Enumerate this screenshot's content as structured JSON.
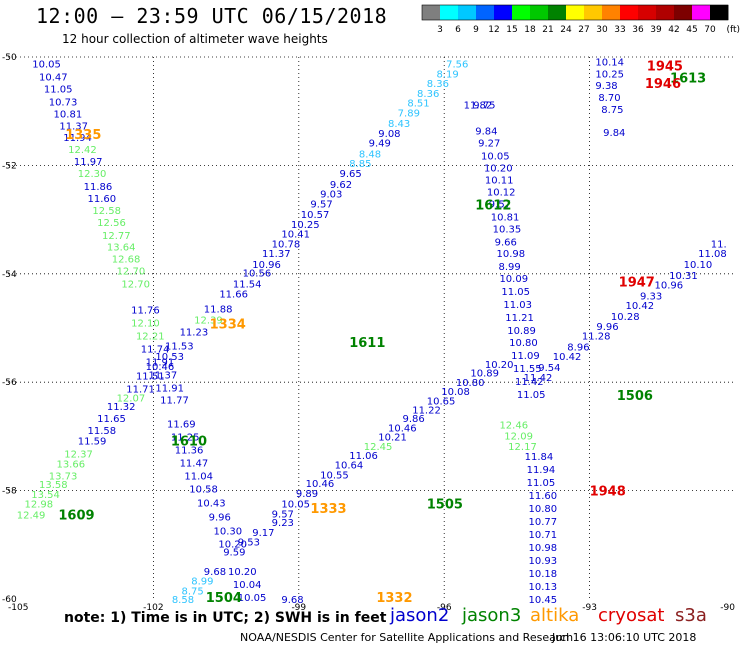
{
  "header": {
    "title": "12:00 – 23:59 UTC 06/15/2018",
    "subtitle": "12 hour collection of altimeter wave heights"
  },
  "colorbar": {
    "unit": "(ft)",
    "ticks": [
      "3",
      "6",
      "9",
      "12",
      "15",
      "18",
      "21",
      "24",
      "27",
      "30",
      "33",
      "36",
      "39",
      "42",
      "45",
      "70"
    ],
    "colors": [
      "#7f7f7f",
      "#00ffff",
      "#00c8ff",
      "#0064ff",
      "#0000ff",
      "#00ff00",
      "#00c800",
      "#008200",
      "#ffff00",
      "#ffc800",
      "#ff8200",
      "#ff0000",
      "#d70000",
      "#af0000",
      "#7d0000",
      "#ff00ff",
      "#000000"
    ]
  },
  "axes": {
    "lon_ticks": [
      "-105",
      "-102",
      "-99",
      "-96",
      "-93",
      "-90"
    ],
    "lat_ticks": [
      "-50",
      "-52",
      "-54",
      "-56",
      "-58",
      "-60"
    ],
    "lon_range": [
      -105,
      -90
    ],
    "lat_range": [
      -60,
      -50
    ]
  },
  "colors": {
    "jason2": "#0000cd",
    "jason3": "#008200",
    "altika": "#ff9900",
    "cryosat": "#e00000",
    "s3a": "#8b2020",
    "low": "#2ec4ff",
    "mid": "#66ee66",
    "grid": "#000000"
  },
  "passes": [
    {
      "label": "1335",
      "color": "altika",
      "lon": -103.82,
      "lat": -51.42
    },
    {
      "label": "1334",
      "color": "altika",
      "lon": -100.84,
      "lat": -54.92
    },
    {
      "label": "1333",
      "color": "altika",
      "lon": -98.76,
      "lat": -58.32
    },
    {
      "label": "1332",
      "color": "altika",
      "lon": -97.4,
      "lat": -59.96
    },
    {
      "label": "1612",
      "color": "jason3",
      "lon": -95.36,
      "lat": -52.72
    },
    {
      "label": "1611",
      "color": "jason3",
      "lon": -97.96,
      "lat": -55.26
    },
    {
      "label": "1610",
      "color": "jason3",
      "lon": -101.64,
      "lat": -57.08
    },
    {
      "label": "1609",
      "color": "jason3",
      "lon": -103.96,
      "lat": -58.44
    },
    {
      "label": "1613",
      "color": "jason3",
      "lon": -91.34,
      "lat": -50.38
    },
    {
      "label": "1506",
      "color": "jason3",
      "lon": -92.44,
      "lat": -56.24
    },
    {
      "label": "1505",
      "color": "jason3",
      "lon": -96.36,
      "lat": -58.24
    },
    {
      "label": "1504",
      "color": "jason3",
      "lon": -100.92,
      "lat": -59.96
    },
    {
      "label": "1945",
      "color": "cryosat",
      "lon": -91.82,
      "lat": -50.16
    },
    {
      "label": "1946",
      "color": "cryosat",
      "lon": -91.86,
      "lat": -50.48
    },
    {
      "label": "1947",
      "color": "cryosat",
      "lon": -92.4,
      "lat": -54.14
    },
    {
      "label": "1948",
      "color": "cryosat",
      "lon": -93.0,
      "lat": -58.0
    }
  ],
  "obs": [
    {
      "v": "10.05",
      "lon": -104.5,
      "lat": -50.12,
      "c": "jason2"
    },
    {
      "v": "10.47",
      "lon": -104.36,
      "lat": -50.36,
      "c": "jason2"
    },
    {
      "v": "11.05",
      "lon": -104.26,
      "lat": -50.58,
      "c": "jason2"
    },
    {
      "v": "10.73",
      "lon": -104.16,
      "lat": -50.82,
      "c": "jason2"
    },
    {
      "v": "10.81",
      "lon": -104.06,
      "lat": -51.04,
      "c": "jason2"
    },
    {
      "v": "11.37",
      "lon": -103.94,
      "lat": -51.26,
      "c": "jason2"
    },
    {
      "v": "11.94",
      "lon": -103.86,
      "lat": -51.48,
      "c": "jason2"
    },
    {
      "v": "12.42",
      "lon": -103.76,
      "lat": -51.7,
      "c": "mid"
    },
    {
      "v": "11.97",
      "lon": -103.64,
      "lat": -51.92,
      "c": "jason2"
    },
    {
      "v": "12.30",
      "lon": -103.56,
      "lat": -52.14,
      "c": "mid"
    },
    {
      "v": "11.86",
      "lon": -103.44,
      "lat": -52.38,
      "c": "jason2"
    },
    {
      "v": "11.60",
      "lon": -103.36,
      "lat": -52.6,
      "c": "jason2"
    },
    {
      "v": "12.58",
      "lon": -103.26,
      "lat": -52.82,
      "c": "mid"
    },
    {
      "v": "12.56",
      "lon": -103.16,
      "lat": -53.04,
      "c": "mid"
    },
    {
      "v": "12.77",
      "lon": -103.06,
      "lat": -53.28,
      "c": "mid"
    },
    {
      "v": "13.64",
      "lon": -102.96,
      "lat": -53.5,
      "c": "mid"
    },
    {
      "v": "12.68",
      "lon": -102.86,
      "lat": -53.72,
      "c": "mid"
    },
    {
      "v": "12.70",
      "lon": -102.76,
      "lat": -53.94,
      "c": "mid"
    },
    {
      "v": "12.70",
      "lon": -102.66,
      "lat": -54.18,
      "c": "mid"
    },
    {
      "v": "11.76",
      "lon": -102.46,
      "lat": -54.66,
      "c": "jason2"
    },
    {
      "v": "12.10",
      "lon": -102.46,
      "lat": -54.9,
      "c": "mid"
    },
    {
      "v": "12.21",
      "lon": -102.36,
      "lat": -55.14,
      "c": "mid"
    },
    {
      "v": "11.74",
      "lon": -102.26,
      "lat": -55.38,
      "c": "jason2"
    },
    {
      "v": "11.91",
      "lon": -102.16,
      "lat": -55.62,
      "c": "jason2"
    },
    {
      "v": "11.37",
      "lon": -102.1,
      "lat": -55.86,
      "c": "jason2"
    },
    {
      "v": "11.91",
      "lon": -101.96,
      "lat": -56.1,
      "c": "jason2"
    },
    {
      "v": "11.77",
      "lon": -101.86,
      "lat": -56.32,
      "c": "jason2"
    },
    {
      "v": "11.69",
      "lon": -101.72,
      "lat": -56.76,
      "c": "jason2"
    },
    {
      "v": "11.25",
      "lon": -101.64,
      "lat": -57.0,
      "c": "jason2"
    },
    {
      "v": "11.36",
      "lon": -101.56,
      "lat": -57.24,
      "c": "jason2"
    },
    {
      "v": "11.47",
      "lon": -101.46,
      "lat": -57.48,
      "c": "jason2"
    },
    {
      "v": "11.04",
      "lon": -101.36,
      "lat": -57.72,
      "c": "jason2"
    },
    {
      "v": "10.58",
      "lon": -101.26,
      "lat": -57.96,
      "c": "jason2"
    },
    {
      "v": "10.43",
      "lon": -101.1,
      "lat": -58.22,
      "c": "jason2"
    },
    {
      "v": "9.96",
      "lon": -100.86,
      "lat": -58.48,
      "c": "jason2"
    },
    {
      "v": "10.30",
      "lon": -100.76,
      "lat": -58.74,
      "c": "jason2"
    },
    {
      "v": "10.20",
      "lon": -100.66,
      "lat": -58.98,
      "c": "jason2"
    },
    {
      "v": "10.20",
      "lon": -100.46,
      "lat": -59.48,
      "c": "jason2"
    },
    {
      "v": "10.04",
      "lon": -100.36,
      "lat": -59.72,
      "c": "jason2"
    },
    {
      "v": "10.05",
      "lon": -100.26,
      "lat": -59.96,
      "c": "jason2"
    },
    {
      "v": "9.68",
      "lon": -99.36,
      "lat": -60.0,
      "c": "jason2"
    },
    {
      "v": "12.49",
      "lon": -104.82,
      "lat": -58.44,
      "c": "mid"
    },
    {
      "v": "12.98",
      "lon": -104.66,
      "lat": -58.24,
      "c": "mid"
    },
    {
      "v": "13.54",
      "lon": -104.52,
      "lat": -58.06,
      "c": "mid"
    },
    {
      "v": "13.58",
      "lon": -104.36,
      "lat": -57.88,
      "c": "mid"
    },
    {
      "v": "13.73",
      "lon": -104.16,
      "lat": -57.72,
      "c": "mid"
    },
    {
      "v": "13.66",
      "lon": -104.0,
      "lat": -57.5,
      "c": "mid"
    },
    {
      "v": "12.37",
      "lon": -103.84,
      "lat": -57.32,
      "c": "mid"
    },
    {
      "v": "11.59",
      "lon": -103.56,
      "lat": -57.08,
      "c": "jason2"
    },
    {
      "v": "11.58",
      "lon": -103.36,
      "lat": -56.88,
      "c": "jason2"
    },
    {
      "v": "11.65",
      "lon": -103.16,
      "lat": -56.66,
      "c": "jason2"
    },
    {
      "v": "11.32",
      "lon": -102.96,
      "lat": -56.44,
      "c": "jason2"
    },
    {
      "v": "12.07",
      "lon": -102.76,
      "lat": -56.28,
      "c": "mid"
    },
    {
      "v": "11.71",
      "lon": -102.56,
      "lat": -56.12,
      "c": "jason2"
    },
    {
      "v": "11.51",
      "lon": -102.36,
      "lat": -55.88,
      "c": "jason2"
    },
    {
      "v": "10.46",
      "lon": -102.16,
      "lat": -55.7,
      "c": "jason2"
    },
    {
      "v": "10.53",
      "lon": -101.96,
      "lat": -55.52,
      "c": "jason2"
    },
    {
      "v": "11.53",
      "lon": -101.76,
      "lat": -55.32,
      "c": "jason2"
    },
    {
      "v": "11.23",
      "lon": -101.46,
      "lat": -55.06,
      "c": "jason2"
    },
    {
      "v": "12.39",
      "lon": -101.16,
      "lat": -54.84,
      "c": "mid"
    },
    {
      "v": "11.88",
      "lon": -100.96,
      "lat": -54.64,
      "c": "jason2"
    },
    {
      "v": "11.66",
      "lon": -100.64,
      "lat": -54.36,
      "c": "jason2"
    },
    {
      "v": "11.54",
      "lon": -100.36,
      "lat": -54.18,
      "c": "jason2"
    },
    {
      "v": "10.56",
      "lon": -100.16,
      "lat": -53.98,
      "c": "jason2"
    },
    {
      "v": "10.96",
      "lon": -99.96,
      "lat": -53.82,
      "c": "jason2"
    },
    {
      "v": "11.37",
      "lon": -99.76,
      "lat": -53.62,
      "c": "jason2"
    },
    {
      "v": "10.78",
      "lon": -99.56,
      "lat": -53.44,
      "c": "jason2"
    },
    {
      "v": "10.41",
      "lon": -99.36,
      "lat": -53.26,
      "c": "jason2"
    },
    {
      "v": "10.25",
      "lon": -99.16,
      "lat": -53.08,
      "c": "jason2"
    },
    {
      "v": "10.57",
      "lon": -98.96,
      "lat": -52.9,
      "c": "jason2"
    },
    {
      "v": "9.57",
      "lon": -98.76,
      "lat": -52.7,
      "c": "jason2"
    },
    {
      "v": "9.03",
      "lon": -98.56,
      "lat": -52.52,
      "c": "jason2"
    },
    {
      "v": "9.62",
      "lon": -98.36,
      "lat": -52.34,
      "c": "jason2"
    },
    {
      "v": "9.65",
      "lon": -98.16,
      "lat": -52.14,
      "c": "jason2"
    },
    {
      "v": "8.85",
      "lon": -97.96,
      "lat": -51.96,
      "c": "low"
    },
    {
      "v": "8.48",
      "lon": -97.76,
      "lat": -51.78,
      "c": "low"
    },
    {
      "v": "9.49",
      "lon": -97.56,
      "lat": -51.58,
      "c": "jason2"
    },
    {
      "v": "9.08",
      "lon": -97.36,
      "lat": -51.4,
      "c": "jason2"
    },
    {
      "v": "8.43",
      "lon": -97.16,
      "lat": -51.22,
      "c": "low"
    },
    {
      "v": "7.89",
      "lon": -96.96,
      "lat": -51.02,
      "c": "low"
    },
    {
      "v": "8.51",
      "lon": -96.76,
      "lat": -50.84,
      "c": "low"
    },
    {
      "v": "8.36",
      "lon": -96.56,
      "lat": -50.66,
      "c": "low"
    },
    {
      "v": "8.36",
      "lon": -96.36,
      "lat": -50.48,
      "c": "low"
    },
    {
      "v": "8.19",
      "lon": -96.16,
      "lat": -50.3,
      "c": "low"
    },
    {
      "v": "7.56",
      "lon": -95.96,
      "lat": -50.12,
      "c": "low"
    },
    {
      "v": "11.82",
      "lon": -95.6,
      "lat": -50.88,
      "c": "jason2"
    },
    {
      "v": "9.75",
      "lon": -95.4,
      "lat": -50.88,
      "c": "jason2"
    },
    {
      "v": "9.84",
      "lon": -95.36,
      "lat": -51.36,
      "c": "jason2"
    },
    {
      "v": "9.27",
      "lon": -95.3,
      "lat": -51.58,
      "c": "jason2"
    },
    {
      "v": "10.05",
      "lon": -95.24,
      "lat": -51.82,
      "c": "jason2"
    },
    {
      "v": "10.20",
      "lon": -95.18,
      "lat": -52.04,
      "c": "jason2"
    },
    {
      "v": "10.11",
      "lon": -95.16,
      "lat": -52.26,
      "c": "jason2"
    },
    {
      "v": "10.12",
      "lon": -95.12,
      "lat": -52.48,
      "c": "jason2"
    },
    {
      "v": "9.57",
      "lon": -95.08,
      "lat": -52.7,
      "c": "jason2"
    },
    {
      "v": "10.81",
      "lon": -95.04,
      "lat": -52.94,
      "c": "jason2"
    },
    {
      "v": "10.35",
      "lon": -95.0,
      "lat": -53.16,
      "c": "jason2"
    },
    {
      "v": "9.66",
      "lon": -94.96,
      "lat": -53.4,
      "c": "jason2"
    },
    {
      "v": "10.98",
      "lon": -94.92,
      "lat": -53.62,
      "c": "jason2"
    },
    {
      "v": "8.99",
      "lon": -94.88,
      "lat": -53.86,
      "c": "jason2"
    },
    {
      "v": "10.09",
      "lon": -94.86,
      "lat": -54.08,
      "c": "jason2"
    },
    {
      "v": "11.05",
      "lon": -94.82,
      "lat": -54.32,
      "c": "jason2"
    },
    {
      "v": "11.03",
      "lon": -94.78,
      "lat": -54.56,
      "c": "jason2"
    },
    {
      "v": "11.21",
      "lon": -94.74,
      "lat": -54.8,
      "c": "jason2"
    },
    {
      "v": "10.89",
      "lon": -94.7,
      "lat": -55.04,
      "c": "jason2"
    },
    {
      "v": "10.80",
      "lon": -94.66,
      "lat": -55.26,
      "c": "jason2"
    },
    {
      "v": "11.09",
      "lon": -94.62,
      "lat": -55.5,
      "c": "jason2"
    },
    {
      "v": "11.55",
      "lon": -94.58,
      "lat": -55.74,
      "c": "jason2"
    },
    {
      "v": "11.42",
      "lon": -94.54,
      "lat": -55.98,
      "c": "jason2"
    },
    {
      "v": "11.05",
      "lon": -94.5,
      "lat": -56.22,
      "c": "jason2"
    },
    {
      "v": "11.84",
      "lon": -94.34,
      "lat": -57.36,
      "c": "jason2"
    },
    {
      "v": "11.94",
      "lon": -94.3,
      "lat": -57.6,
      "c": "jason2"
    },
    {
      "v": "11.05",
      "lon": -94.3,
      "lat": -57.84,
      "c": "jason2"
    },
    {
      "v": "11.60",
      "lon": -94.26,
      "lat": -58.08,
      "c": "jason2"
    },
    {
      "v": "10.80",
      "lon": -94.26,
      "lat": -58.32,
      "c": "jason2"
    },
    {
      "v": "10.77",
      "lon": -94.26,
      "lat": -58.56,
      "c": "jason2"
    },
    {
      "v": "10.71",
      "lon": -94.26,
      "lat": -58.8,
      "c": "jason2"
    },
    {
      "v": "10.98",
      "lon": -94.26,
      "lat": -59.04,
      "c": "jason2"
    },
    {
      "v": "10.93",
      "lon": -94.26,
      "lat": -59.28,
      "c": "jason2"
    },
    {
      "v": "10.18",
      "lon": -94.26,
      "lat": -59.52,
      "c": "jason2"
    },
    {
      "v": "10.13",
      "lon": -94.26,
      "lat": -59.76,
      "c": "jason2"
    },
    {
      "v": "10.45",
      "lon": -94.26,
      "lat": -60.0,
      "c": "jason2"
    },
    {
      "v": "10.14",
      "lon": -92.88,
      "lat": -50.08,
      "c": "jason2"
    },
    {
      "v": "10.25",
      "lon": -92.88,
      "lat": -50.3,
      "c": "jason2"
    },
    {
      "v": "9.38",
      "lon": -92.88,
      "lat": -50.52,
      "c": "jason2"
    },
    {
      "v": "8.70",
      "lon": -92.82,
      "lat": -50.74,
      "c": "jason2"
    },
    {
      "v": "8.75",
      "lon": -92.76,
      "lat": -50.96,
      "c": "jason2"
    },
    {
      "v": "9.84",
      "lon": -92.72,
      "lat": -51.38,
      "c": "jason2"
    },
    {
      "v": "8.58",
      "lon": -101.62,
      "lat": -60.0,
      "c": "low"
    },
    {
      "v": "8.75",
      "lon": -101.42,
      "lat": -59.84,
      "c": "low"
    },
    {
      "v": "8.99",
      "lon": -101.22,
      "lat": -59.66,
      "c": "low"
    },
    {
      "v": "9.68",
      "lon": -100.96,
      "lat": -59.48,
      "c": "jason2"
    },
    {
      "v": "9.59",
      "lon": -100.56,
      "lat": -59.12,
      "c": "jason2"
    },
    {
      "v": "9.53",
      "lon": -100.26,
      "lat": -58.94,
      "c": "jason2"
    },
    {
      "v": "9.17",
      "lon": -99.96,
      "lat": -58.76,
      "c": "jason2"
    },
    {
      "v": "9.23",
      "lon": -99.56,
      "lat": -58.58,
      "c": "jason2"
    },
    {
      "v": "9.57",
      "lon": -99.56,
      "lat": -58.42,
      "c": "jason2"
    },
    {
      "v": "10.05",
      "lon": -99.36,
      "lat": -58.24,
      "c": "jason2"
    },
    {
      "v": "9.89",
      "lon": -99.06,
      "lat": -58.04,
      "c": "jason2"
    },
    {
      "v": "10.46",
      "lon": -98.86,
      "lat": -57.86,
      "c": "jason2"
    },
    {
      "v": "10.55",
      "lon": -98.56,
      "lat": -57.7,
      "c": "jason2"
    },
    {
      "v": "10.64",
      "lon": -98.26,
      "lat": -57.52,
      "c": "jason2"
    },
    {
      "v": "11.06",
      "lon": -97.96,
      "lat": -57.34,
      "c": "jason2"
    },
    {
      "v": "12.45",
      "lon": -97.66,
      "lat": -57.18,
      "c": "mid"
    },
    {
      "v": "10.21",
      "lon": -97.36,
      "lat": -57.0,
      "c": "jason2"
    },
    {
      "v": "10.46",
      "lon": -97.16,
      "lat": -56.84,
      "c": "jason2"
    },
    {
      "v": "9.86",
      "lon": -96.86,
      "lat": -56.66,
      "c": "jason2"
    },
    {
      "v": "11.22",
      "lon": -96.66,
      "lat": -56.5,
      "c": "jason2"
    },
    {
      "v": "10.65",
      "lon": -96.36,
      "lat": -56.34,
      "c": "jason2"
    },
    {
      "v": "10.08",
      "lon": -96.06,
      "lat": -56.16,
      "c": "jason2"
    },
    {
      "v": "10.80",
      "lon": -95.76,
      "lat": -56.0,
      "c": "jason2"
    },
    {
      "v": "10.89",
      "lon": -95.46,
      "lat": -55.82,
      "c": "jason2"
    },
    {
      "v": "10.20",
      "lon": -95.16,
      "lat": -55.66,
      "c": "jason2"
    },
    {
      "v": "12.46",
      "lon": -94.86,
      "lat": -56.78,
      "c": "mid"
    },
    {
      "v": "12.09",
      "lon": -94.76,
      "lat": -56.98,
      "c": "mid"
    },
    {
      "v": "12.17",
      "lon": -94.68,
      "lat": -57.18,
      "c": "mid"
    },
    {
      "v": "11.42",
      "lon": -94.36,
      "lat": -55.9,
      "c": "jason2"
    },
    {
      "v": "9.54",
      "lon": -94.06,
      "lat": -55.72,
      "c": "jason2"
    },
    {
      "v": "10.42",
      "lon": -93.76,
      "lat": -55.52,
      "c": "jason2"
    },
    {
      "v": "8.96",
      "lon": -93.46,
      "lat": -55.34,
      "c": "jason2"
    },
    {
      "v": "11.28",
      "lon": -93.16,
      "lat": -55.14,
      "c": "jason2"
    },
    {
      "v": "9.96",
      "lon": -92.86,
      "lat": -54.96,
      "c": "jason2"
    },
    {
      "v": "10.28",
      "lon": -92.56,
      "lat": -54.78,
      "c": "jason2"
    },
    {
      "v": "10.42",
      "lon": -92.26,
      "lat": -54.58,
      "c": "jason2"
    },
    {
      "v": "9.33",
      "lon": -91.96,
      "lat": -54.4,
      "c": "jason2"
    },
    {
      "v": "10.96",
      "lon": -91.66,
      "lat": -54.2,
      "c": "jason2"
    },
    {
      "v": "10.31",
      "lon": -91.36,
      "lat": -54.02,
      "c": "jason2"
    },
    {
      "v": "10.10",
      "lon": -91.06,
      "lat": -53.82,
      "c": "jason2"
    },
    {
      "v": "11.08",
      "lon": -90.76,
      "lat": -53.62,
      "c": "jason2"
    },
    {
      "v": "11.",
      "lon": -90.5,
      "lat": -53.44,
      "c": "jason2"
    }
  ],
  "legend": {
    "note": "note:  1) Time is in UTC; 2) SWH is in feet",
    "sats": [
      {
        "label": "jason2",
        "color": "jason2"
      },
      {
        "label": "jason3",
        "color": "jason3"
      },
      {
        "label": "altika",
        "color": "altika"
      },
      {
        "label": "cryosat",
        "color": "cryosat"
      },
      {
        "label": "s3a",
        "color": "s3a"
      }
    ]
  },
  "footer": {
    "credit": "NOAA/NESDIS Center for Satellite Applications and Research",
    "timestamp": "Jun 16 13:06:10 UTC 2018"
  }
}
